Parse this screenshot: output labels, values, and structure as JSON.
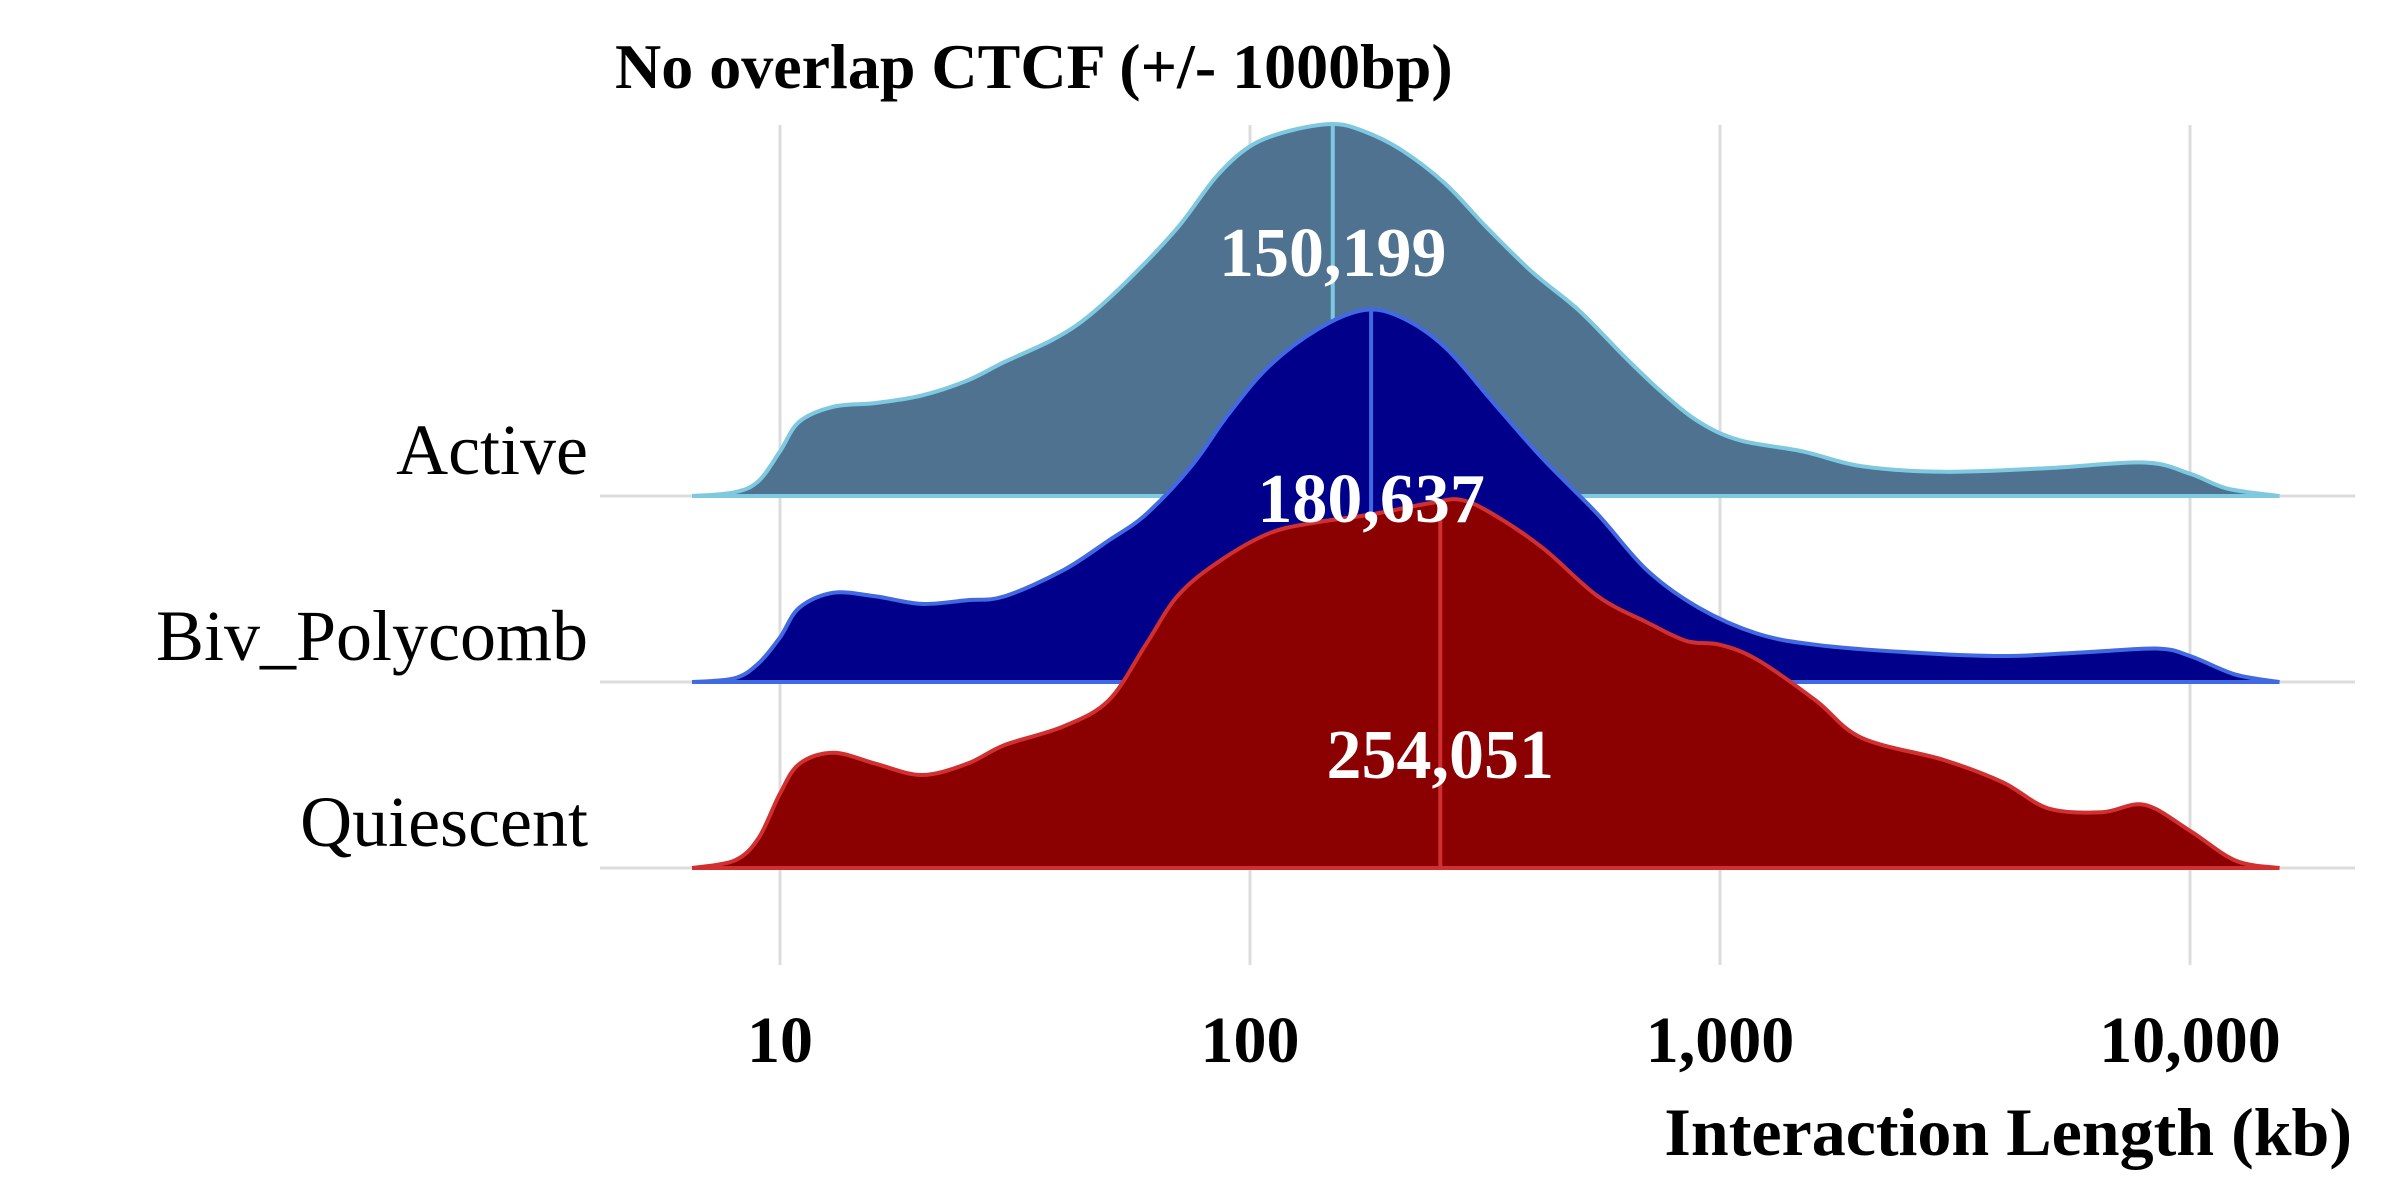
{
  "chart_data": {
    "type": "area",
    "subtype": "ridgeline-density",
    "title": "No overlap CTCF (+/- 1000bp)",
    "xlabel": "Interaction Length (kb)",
    "ylabel": "",
    "x_scale": "log10",
    "xlim": [
      6.5,
      15500
    ],
    "x_ticks": [
      10,
      100,
      1000,
      10000
    ],
    "x_tick_labels": [
      "10",
      "100",
      "1,000",
      "10,000"
    ],
    "grid": "vertical",
    "series": [
      {
        "name": "Active",
        "fill": "#4e7290",
        "stroke": "#7ec8e0",
        "median_kb": 150,
        "median_label": "150,199",
        "density": [
          [
            6.5,
            0
          ],
          [
            8,
            0.01
          ],
          [
            9,
            0.04
          ],
          [
            10,
            0.12
          ],
          [
            11,
            0.2
          ],
          [
            13,
            0.24
          ],
          [
            16,
            0.25
          ],
          [
            20,
            0.27
          ],
          [
            25,
            0.31
          ],
          [
            30,
            0.36
          ],
          [
            38,
            0.42
          ],
          [
            45,
            0.48
          ],
          [
            55,
            0.58
          ],
          [
            70,
            0.72
          ],
          [
            85,
            0.86
          ],
          [
            100,
            0.94
          ],
          [
            120,
            0.98
          ],
          [
            150,
            1.0
          ],
          [
            175,
            0.98
          ],
          [
            210,
            0.93
          ],
          [
            260,
            0.84
          ],
          [
            320,
            0.72
          ],
          [
            400,
            0.6
          ],
          [
            500,
            0.5
          ],
          [
            620,
            0.38
          ],
          [
            750,
            0.28
          ],
          [
            900,
            0.2
          ],
          [
            1100,
            0.15
          ],
          [
            1500,
            0.12
          ],
          [
            2000,
            0.08
          ],
          [
            3000,
            0.065
          ],
          [
            5000,
            0.075
          ],
          [
            8000,
            0.09
          ],
          [
            10000,
            0.06
          ],
          [
            12000,
            0.02
          ],
          [
            15500,
            0
          ]
        ]
      },
      {
        "name": "Biv_Polycomb",
        "fill": "#00008b",
        "stroke": "#4169e1",
        "median_kb": 181,
        "median_label": "180,637",
        "density": [
          [
            6.5,
            0
          ],
          [
            8,
            0.01
          ],
          [
            9,
            0.05
          ],
          [
            10,
            0.12
          ],
          [
            11,
            0.2
          ],
          [
            13,
            0.24
          ],
          [
            16,
            0.23
          ],
          [
            20,
            0.21
          ],
          [
            25,
            0.22
          ],
          [
            30,
            0.23
          ],
          [
            40,
            0.3
          ],
          [
            50,
            0.38
          ],
          [
            60,
            0.45
          ],
          [
            75,
            0.58
          ],
          [
            90,
            0.72
          ],
          [
            110,
            0.85
          ],
          [
            140,
            0.95
          ],
          [
            175,
            1.0
          ],
          [
            210,
            0.98
          ],
          [
            260,
            0.9
          ],
          [
            330,
            0.75
          ],
          [
            420,
            0.6
          ],
          [
            550,
            0.45
          ],
          [
            700,
            0.3
          ],
          [
            900,
            0.2
          ],
          [
            1200,
            0.13
          ],
          [
            1600,
            0.1
          ],
          [
            2500,
            0.08
          ],
          [
            4000,
            0.07
          ],
          [
            6000,
            0.08
          ],
          [
            8500,
            0.09
          ],
          [
            10000,
            0.07
          ],
          [
            12500,
            0.02
          ],
          [
            15500,
            0
          ]
        ]
      },
      {
        "name": "Quiescent",
        "fill": "#8b0000",
        "stroke": "#d23030",
        "median_kb": 254,
        "median_label": "254,051",
        "density": [
          [
            6.5,
            0
          ],
          [
            8,
            0.02
          ],
          [
            9,
            0.08
          ],
          [
            10,
            0.2
          ],
          [
            11,
            0.28
          ],
          [
            13,
            0.31
          ],
          [
            16,
            0.28
          ],
          [
            20,
            0.25
          ],
          [
            25,
            0.28
          ],
          [
            30,
            0.33
          ],
          [
            40,
            0.38
          ],
          [
            50,
            0.45
          ],
          [
            60,
            0.6
          ],
          [
            70,
            0.73
          ],
          [
            85,
            0.82
          ],
          [
            110,
            0.9
          ],
          [
            140,
            0.93
          ],
          [
            180,
            0.95
          ],
          [
            240,
            0.98
          ],
          [
            280,
            0.99
          ],
          [
            330,
            0.95
          ],
          [
            420,
            0.86
          ],
          [
            550,
            0.73
          ],
          [
            700,
            0.66
          ],
          [
            850,
            0.61
          ],
          [
            1000,
            0.6
          ],
          [
            1200,
            0.56
          ],
          [
            1600,
            0.45
          ],
          [
            2000,
            0.35
          ],
          [
            3000,
            0.29
          ],
          [
            4000,
            0.23
          ],
          [
            5000,
            0.16
          ],
          [
            6500,
            0.15
          ],
          [
            8000,
            0.17
          ],
          [
            10000,
            0.1
          ],
          [
            12500,
            0.02
          ],
          [
            15500,
            0
          ]
        ]
      }
    ]
  }
}
